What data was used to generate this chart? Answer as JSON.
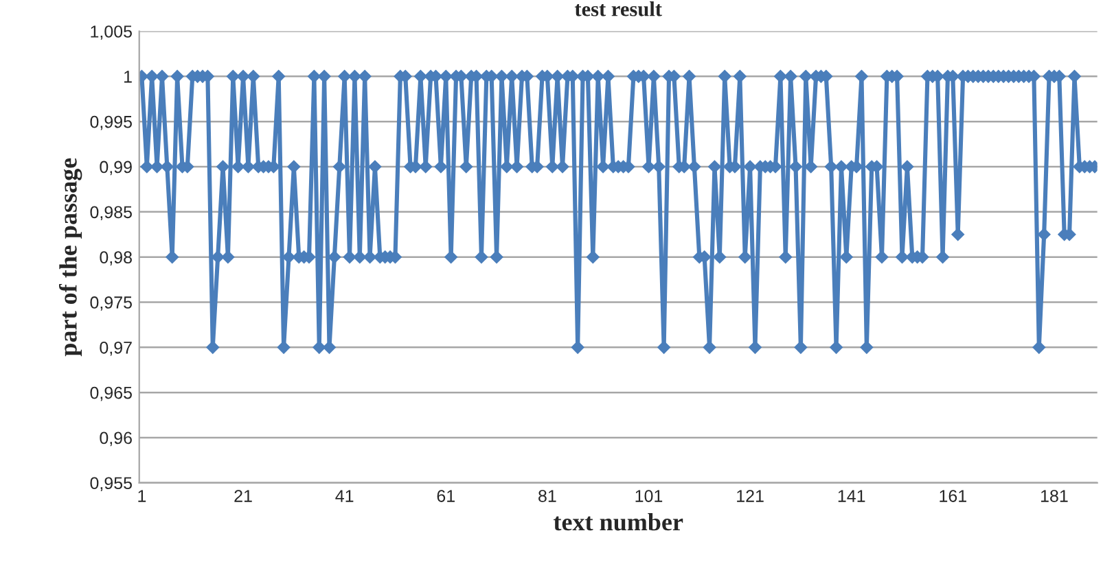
{
  "chart_data": {
    "type": "line",
    "title": "test result",
    "xlabel": "text number",
    "ylabel": "part of the passage",
    "x": [
      1,
      2,
      3,
      4,
      5,
      6,
      7,
      8,
      9,
      10,
      11,
      12,
      13,
      14,
      15,
      16,
      17,
      18,
      19,
      20,
      21,
      22,
      23,
      24,
      25,
      26,
      27,
      28,
      29,
      30,
      31,
      32,
      33,
      34,
      35,
      36,
      37,
      38,
      39,
      40,
      41,
      42,
      43,
      44,
      45,
      46,
      47,
      48,
      49,
      50,
      51,
      52,
      53,
      54,
      55,
      56,
      57,
      58,
      59,
      60,
      61,
      62,
      63,
      64,
      65,
      66,
      67,
      68,
      69,
      70,
      71,
      72,
      73,
      74,
      75,
      76,
      77,
      78,
      79,
      80,
      81,
      82,
      83,
      84,
      85,
      86,
      87,
      88,
      89,
      90,
      91,
      92,
      93,
      94,
      95,
      96,
      97,
      98,
      99,
      100,
      101,
      102,
      103,
      104,
      105,
      106,
      107,
      108,
      109,
      110,
      111,
      112,
      113,
      114,
      115,
      116,
      117,
      118,
      119,
      120,
      121,
      122,
      123,
      124,
      125,
      126,
      127,
      128,
      129,
      130,
      131,
      132,
      133,
      134,
      135,
      136,
      137,
      138,
      139,
      140,
      141,
      142,
      143,
      144,
      145,
      146,
      147,
      148,
      149,
      150,
      151,
      152,
      153,
      154,
      155,
      156,
      157,
      158,
      159,
      160,
      161,
      162,
      163,
      164,
      165,
      166,
      167,
      168,
      169,
      170,
      171,
      172,
      173,
      174,
      175,
      176,
      177,
      178,
      179,
      180,
      181,
      182,
      183,
      184,
      185,
      186,
      187,
      188,
      189
    ],
    "series": [
      {
        "color": "#4a7ebb",
        "values": [
          1,
          0.99,
          1,
          0.99,
          1,
          0.99,
          0.98,
          1,
          0.99,
          0.99,
          1,
          1,
          1,
          1,
          0.97,
          0.98,
          0.99,
          0.98,
          1,
          0.99,
          1,
          0.99,
          1,
          0.99,
          0.99,
          0.99,
          0.99,
          1,
          0.97,
          0.98,
          0.99,
          0.98,
          0.98,
          0.98,
          1,
          0.97,
          1,
          0.97,
          0.98,
          0.99,
          1,
          0.98,
          1,
          0.98,
          1,
          0.98,
          0.99,
          0.98,
          0.98,
          0.98,
          0.98,
          1,
          1,
          0.99,
          0.99,
          1,
          0.99,
          1,
          1,
          0.99,
          1,
          0.98,
          1,
          1,
          0.99,
          1,
          1,
          0.98,
          1,
          1,
          0.98,
          1,
          0.99,
          1,
          0.99,
          1,
          1,
          0.99,
          0.99,
          1,
          1,
          0.99,
          1,
          0.99,
          1,
          1,
          0.97,
          1,
          1,
          0.98,
          1,
          0.99,
          1,
          0.99,
          0.99,
          0.99,
          0.99,
          1,
          1,
          1,
          0.99,
          1,
          0.99,
          0.97,
          1,
          1,
          0.99,
          0.99,
          1,
          0.99,
          0.98,
          0.98,
          0.97,
          0.99,
          0.98,
          1,
          0.99,
          0.99,
          1,
          0.98,
          0.99,
          0.97,
          0.99,
          0.99,
          0.99,
          0.99,
          1,
          0.98,
          1,
          0.99,
          0.97,
          1,
          0.99,
          1,
          1,
          1,
          0.99,
          0.97,
          0.99,
          0.98,
          0.99,
          0.99,
          1,
          0.97,
          0.99,
          0.99,
          0.98,
          1,
          1,
          1,
          0.98,
          0.99,
          0.98,
          0.98,
          0.98,
          1,
          1,
          1,
          0.98,
          1,
          1,
          0.9825,
          1,
          1,
          1,
          1,
          1,
          1,
          1,
          1,
          1,
          1,
          1,
          1,
          1,
          1,
          1,
          0.97,
          0.9825,
          1,
          1,
          1,
          0.9825,
          0.9825,
          1,
          0.99,
          0.99,
          0.99,
          0.99
        ]
      }
    ],
    "xlim": [
      0.5,
      189.5
    ],
    "xticks": [
      1,
      21,
      41,
      61,
      81,
      101,
      121,
      141,
      161,
      181
    ],
    "ylim": [
      0.955,
      1.005
    ],
    "yticks": [
      {
        "value": 0.955,
        "label": "0,955"
      },
      {
        "value": 0.96,
        "label": "0,96"
      },
      {
        "value": 0.965,
        "label": "0,965"
      },
      {
        "value": 0.97,
        "label": "0,97"
      },
      {
        "value": 0.975,
        "label": "0,975"
      },
      {
        "value": 0.98,
        "label": "0,98"
      },
      {
        "value": 0.985,
        "label": "0,985"
      },
      {
        "value": 0.99,
        "label": "0,99"
      },
      {
        "value": 0.995,
        "label": "0,995"
      },
      {
        "value": 1,
        "label": "1"
      },
      {
        "value": 1.005,
        "label": "1,005"
      }
    ],
    "grid": "y",
    "marker": "diamond",
    "line_style": "solid"
  }
}
